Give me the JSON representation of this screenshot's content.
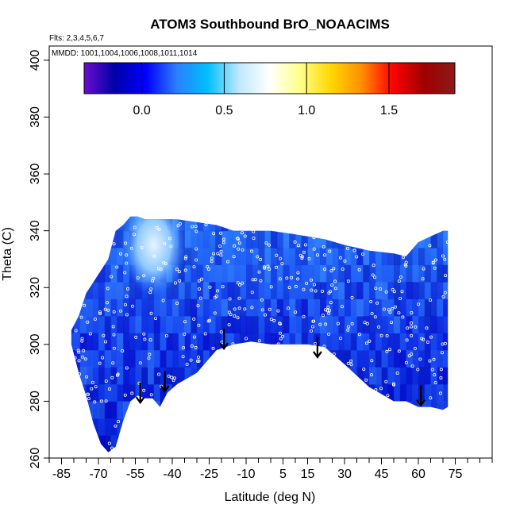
{
  "chart_data": {
    "type": "heatmap",
    "title": "ATOM3 Southbound BrO_NOAACIMS",
    "flights_note": "Flts: 2,3,4,5,6,7",
    "dates_note": "MMDD: 1001,1004,1006,1008,1011,1014",
    "xlabel": "Latitude (deg N)",
    "ylabel": "Theta (C)",
    "xlim": [
      -90,
      90
    ],
    "ylim": [
      260,
      405
    ],
    "x_ticks": [
      -85,
      -70,
      -55,
      -40,
      -25,
      -10,
      5,
      15,
      30,
      45,
      60,
      75
    ],
    "y_ticks": [
      260,
      280,
      300,
      320,
      340,
      360,
      380,
      400
    ],
    "colorbar": {
      "range": [
        -0.35,
        1.9
      ],
      "ticks": [
        0.0,
        0.5,
        1.0,
        1.5
      ],
      "tick_labels": [
        "0.0",
        "0.5",
        "1.0",
        "1.5"
      ],
      "colors": [
        "#6a0dcc",
        "#0000a8",
        "#0000ff",
        "#2a7fff",
        "#00bfff",
        "#bfe8ff",
        "#ffffff",
        "#ffff88",
        "#ffd700",
        "#ff8c00",
        "#ff0000",
        "#a00000",
        "#8b1a1a"
      ]
    },
    "field_boundary": {
      "latitude": [
        -81,
        -78,
        -75,
        -72,
        -69,
        -66,
        -63,
        -60,
        -57,
        -54,
        -51,
        -48,
        -45,
        -42,
        -38,
        -30,
        -22,
        -15,
        -8,
        0,
        8,
        15,
        22,
        30,
        40,
        50,
        55,
        60,
        65,
        70,
        72
      ],
      "theta_top": [
        305,
        310,
        318,
        322,
        326,
        330,
        340,
        342,
        345,
        345,
        344,
        344,
        344,
        344,
        344,
        343,
        342,
        340,
        340,
        340,
        339,
        338,
        337,
        335,
        333,
        332,
        331,
        336,
        338,
        340,
        340
      ],
      "theta_bottom": [
        300,
        290,
        282,
        272,
        265,
        262,
        264,
        273,
        280,
        282,
        281,
        281,
        278,
        283,
        286,
        290,
        298,
        300,
        301,
        300,
        300,
        300,
        299,
        293,
        285,
        280,
        280,
        278,
        278,
        277,
        278
      ]
    },
    "high_value_region": {
      "latitude": [
        -55,
        -40
      ],
      "theta": [
        325,
        345
      ],
      "value": 0.9
    },
    "tropopause_arrows": [
      {
        "latitude": -53,
        "theta": 286
      },
      {
        "latitude": -43,
        "theta": 290
      },
      {
        "latitude": -19,
        "theta": 305
      },
      {
        "latitude": 19,
        "theta": 302
      },
      {
        "latitude": 61,
        "theta": 285
      }
    ]
  }
}
